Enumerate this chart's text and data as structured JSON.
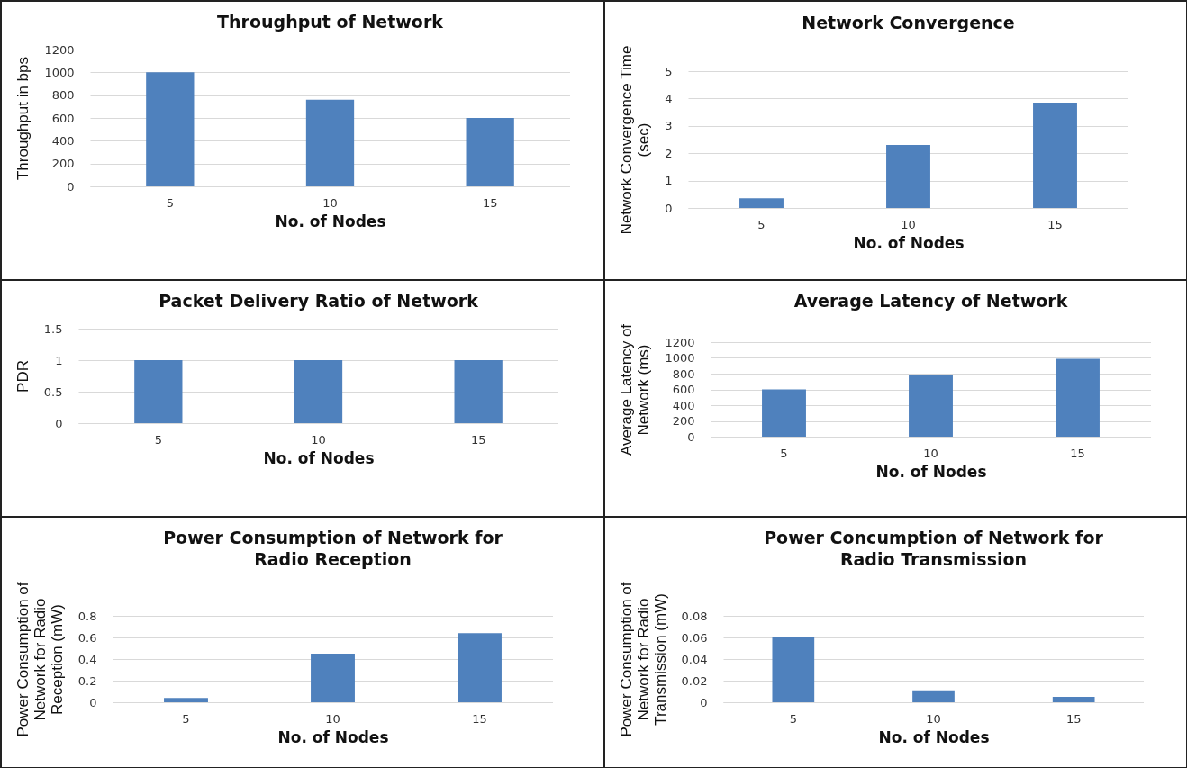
{
  "chart_data": [
    {
      "type": "bar",
      "title": "Throughput of Network",
      "xlabel": "No. of Nodes",
      "ylabel": "Throughput in bps",
      "categories": [
        "5",
        "10",
        "15"
      ],
      "values": [
        1000,
        760,
        600
      ],
      "color": "#4f81bd",
      "ylim": [
        0,
        1200
      ],
      "yticks": [
        0,
        200,
        400,
        600,
        800,
        1000,
        1200
      ],
      "grid": "y"
    },
    {
      "type": "bar",
      "title": "Network Convergence",
      "xlabel": "No. of Nodes",
      "ylabel": "Network Convergence Time\n(sec)",
      "categories": [
        "5",
        "10",
        "15"
      ],
      "values": [
        0.35,
        2.3,
        3.85
      ],
      "color": "#4f81bd",
      "ylim": [
        0,
        5
      ],
      "yticks": [
        0,
        1,
        2,
        3,
        4,
        5
      ],
      "grid": "y"
    },
    {
      "type": "bar",
      "title": "Packet Delivery Ratio of Network",
      "xlabel": "No. of Nodes",
      "ylabel": "PDR",
      "categories": [
        "5",
        "10",
        "15"
      ],
      "values": [
        1,
        1,
        1
      ],
      "color": "#4f81bd",
      "ylim": [
        0,
        1.5
      ],
      "yticks": [
        0,
        0.5,
        1,
        1.5
      ],
      "grid": "y"
    },
    {
      "type": "bar",
      "title": "Average Latency of Network",
      "xlabel": "No. of Nodes",
      "ylabel": "Average Latency of\nNetwork (ms)",
      "categories": [
        "5",
        "10",
        "15"
      ],
      "values": [
        600,
        790,
        990
      ],
      "color": "#4f81bd",
      "ylim": [
        0,
        1200
      ],
      "yticks": [
        0,
        200,
        400,
        600,
        800,
        1000,
        1200
      ],
      "grid": "y"
    },
    {
      "type": "bar",
      "title": "Power Consumption of Network for\nRadio Reception",
      "xlabel": "No. of Nodes",
      "ylabel": "Power Consumption of\nNetwork for Radio\nReception (mW)",
      "categories": [
        "5",
        "10",
        "15"
      ],
      "values": [
        0.04,
        0.45,
        0.64
      ],
      "color": "#4f81bd",
      "ylim": [
        0,
        0.8
      ],
      "yticks": [
        0,
        0.2,
        0.4,
        0.6,
        0.8
      ],
      "grid": "y"
    },
    {
      "type": "bar",
      "title": "Power Concumption of Network for\nRadio Transmission",
      "xlabel": "No. of Nodes",
      "ylabel": "Power Consumption of\nNetwork for Radio\nTransmission (mW)",
      "categories": [
        "5",
        "10",
        "15"
      ],
      "values": [
        0.06,
        0.011,
        0.005
      ],
      "color": "#4f81bd",
      "ylim": [
        0,
        0.08
      ],
      "yticks": [
        0,
        0.02,
        0.04,
        0.06,
        0.08
      ],
      "grid": "y"
    }
  ]
}
